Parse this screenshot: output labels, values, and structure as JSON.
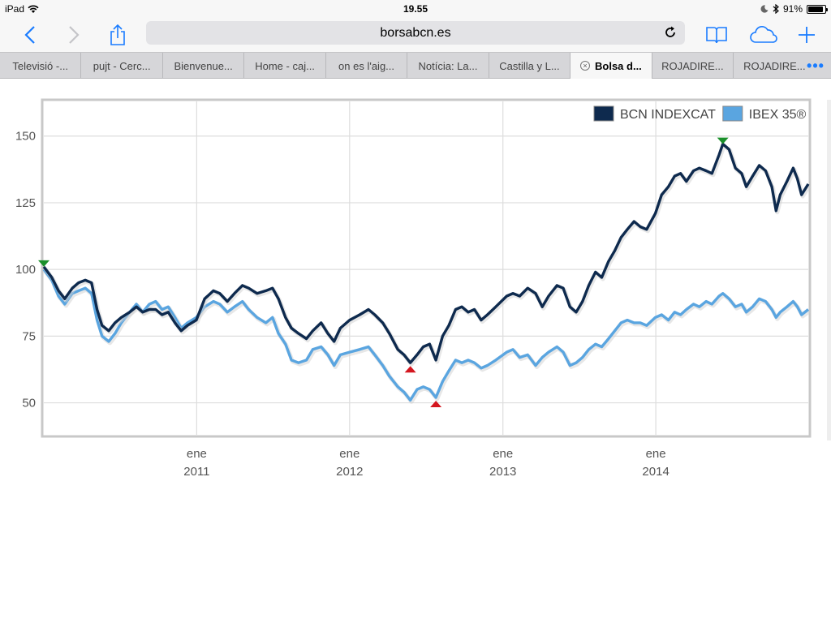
{
  "status_bar": {
    "device": "iPad",
    "time": "19.55",
    "battery": "91%",
    "battery_level": 0.91
  },
  "toolbar": {
    "url": "borsabcn.es"
  },
  "tabs": [
    {
      "label": "Televisió -..."
    },
    {
      "label": "pujt - Cerc..."
    },
    {
      "label": "Bienvenue..."
    },
    {
      "label": "Home - caj..."
    },
    {
      "label": "on es l'aig..."
    },
    {
      "label": "Notícia: La..."
    },
    {
      "label": "Castilla y L..."
    },
    {
      "label": "Bolsa d...",
      "active": true
    },
    {
      "label": "ROJADIRE..."
    },
    {
      "label": "ROJADIRE..."
    }
  ],
  "chart_data": {
    "type": "line",
    "title": "",
    "xlabel": "",
    "ylabel": "",
    "ylim": [
      38,
      163
    ],
    "yticks": [
      50,
      75,
      100,
      125,
      150
    ],
    "xlim": [
      "2010-01-01",
      "2014-12-31"
    ],
    "xticks": [
      {
        "date": "2011-01-01",
        "month": "ene",
        "year": "2011"
      },
      {
        "date": "2012-01-01",
        "month": "ene",
        "year": "2012"
      },
      {
        "date": "2013-01-01",
        "month": "ene",
        "year": "2013"
      },
      {
        "date": "2014-01-01",
        "month": "ene",
        "year": "2014"
      }
    ],
    "grid": true,
    "legend": "top-right",
    "series": [
      {
        "name": "BCN INDEXCAT",
        "color": "#0e2a4e",
        "points": [
          [
            "2010-01-01",
            101
          ],
          [
            "2010-01-20",
            97
          ],
          [
            "2010-02-05",
            92
          ],
          [
            "2010-02-20",
            89
          ],
          [
            "2010-03-10",
            93
          ],
          [
            "2010-03-25",
            95
          ],
          [
            "2010-04-10",
            96
          ],
          [
            "2010-04-25",
            95
          ],
          [
            "2010-05-08",
            85
          ],
          [
            "2010-05-20",
            79
          ],
          [
            "2010-06-05",
            77
          ],
          [
            "2010-06-20",
            80
          ],
          [
            "2010-07-05",
            82
          ],
          [
            "2010-07-25",
            84
          ],
          [
            "2010-08-10",
            86
          ],
          [
            "2010-08-25",
            84
          ],
          [
            "2010-09-10",
            85
          ],
          [
            "2010-09-25",
            85
          ],
          [
            "2010-10-10",
            83
          ],
          [
            "2010-10-25",
            84
          ],
          [
            "2010-11-10",
            80
          ],
          [
            "2010-11-25",
            77
          ],
          [
            "2010-12-10",
            79
          ],
          [
            "2010-12-31",
            81
          ],
          [
            "2011-01-20",
            89
          ],
          [
            "2011-02-10",
            92
          ],
          [
            "2011-02-25",
            91
          ],
          [
            "2011-03-15",
            88
          ],
          [
            "2011-04-01",
            91
          ],
          [
            "2011-04-20",
            94
          ],
          [
            "2011-05-05",
            93
          ],
          [
            "2011-05-25",
            91
          ],
          [
            "2011-06-15",
            92
          ],
          [
            "2011-07-01",
            93
          ],
          [
            "2011-07-15",
            89
          ],
          [
            "2011-08-01",
            82
          ],
          [
            "2011-08-15",
            78
          ],
          [
            "2011-09-01",
            76
          ],
          [
            "2011-09-20",
            74
          ],
          [
            "2011-10-05",
            77
          ],
          [
            "2011-10-25",
            80
          ],
          [
            "2011-11-10",
            76
          ],
          [
            "2011-11-25",
            73
          ],
          [
            "2011-12-10",
            78
          ],
          [
            "2012-01-01",
            81
          ],
          [
            "2012-01-25",
            83
          ],
          [
            "2012-02-15",
            85
          ],
          [
            "2012-03-01",
            83
          ],
          [
            "2012-03-20",
            80
          ],
          [
            "2012-04-05",
            76
          ],
          [
            "2012-04-25",
            70
          ],
          [
            "2012-05-10",
            68
          ],
          [
            "2012-05-25",
            65
          ],
          [
            "2012-06-10",
            68
          ],
          [
            "2012-06-25",
            71
          ],
          [
            "2012-07-10",
            72
          ],
          [
            "2012-07-25",
            66
          ],
          [
            "2012-08-10",
            75
          ],
          [
            "2012-08-25",
            79
          ],
          [
            "2012-09-10",
            85
          ],
          [
            "2012-09-25",
            86
          ],
          [
            "2012-10-10",
            84
          ],
          [
            "2012-10-25",
            85
          ],
          [
            "2012-11-10",
            81
          ],
          [
            "2012-11-25",
            83
          ],
          [
            "2012-12-15",
            86
          ],
          [
            "2013-01-10",
            90
          ],
          [
            "2013-01-25",
            91
          ],
          [
            "2013-02-10",
            90
          ],
          [
            "2013-03-01",
            93
          ],
          [
            "2013-03-20",
            91
          ],
          [
            "2013-04-05",
            86
          ],
          [
            "2013-04-20",
            90
          ],
          [
            "2013-05-10",
            94
          ],
          [
            "2013-05-25",
            93
          ],
          [
            "2013-06-10",
            86
          ],
          [
            "2013-06-25",
            84
          ],
          [
            "2013-07-10",
            88
          ],
          [
            "2013-07-25",
            94
          ],
          [
            "2013-08-10",
            99
          ],
          [
            "2013-08-25",
            97
          ],
          [
            "2013-09-10",
            103
          ],
          [
            "2013-09-25",
            107
          ],
          [
            "2013-10-10",
            112
          ],
          [
            "2013-10-25",
            115
          ],
          [
            "2013-11-10",
            118
          ],
          [
            "2013-11-25",
            116
          ],
          [
            "2013-12-10",
            115
          ],
          [
            "2013-12-31",
            121
          ],
          [
            "2014-01-15",
            128
          ],
          [
            "2014-01-31",
            131
          ],
          [
            "2014-02-15",
            135
          ],
          [
            "2014-03-01",
            136
          ],
          [
            "2014-03-15",
            133
          ],
          [
            "2014-04-01",
            137
          ],
          [
            "2014-04-15",
            138
          ],
          [
            "2014-05-01",
            137
          ],
          [
            "2014-05-15",
            136
          ],
          [
            "2014-06-01",
            143
          ],
          [
            "2014-06-10",
            147
          ],
          [
            "2014-06-25",
            145
          ],
          [
            "2014-07-10",
            138
          ],
          [
            "2014-07-25",
            136
          ],
          [
            "2014-08-05",
            131
          ],
          [
            "2014-08-20",
            135
          ],
          [
            "2014-09-05",
            139
          ],
          [
            "2014-09-20",
            137
          ],
          [
            "2014-10-05",
            131
          ],
          [
            "2014-10-15",
            122
          ],
          [
            "2014-10-25",
            128
          ],
          [
            "2014-11-10",
            133
          ],
          [
            "2014-11-25",
            138
          ],
          [
            "2014-12-05",
            134
          ],
          [
            "2014-12-15",
            128
          ],
          [
            "2014-12-31",
            132
          ]
        ]
      },
      {
        "name": "IBEX 35®",
        "color": "#5aa5e0",
        "points": [
          [
            "2010-01-01",
            100
          ],
          [
            "2010-01-20",
            96
          ],
          [
            "2010-02-05",
            90
          ],
          [
            "2010-02-20",
            87
          ],
          [
            "2010-03-10",
            91
          ],
          [
            "2010-03-25",
            92
          ],
          [
            "2010-04-10",
            93
          ],
          [
            "2010-04-25",
            91
          ],
          [
            "2010-05-08",
            81
          ],
          [
            "2010-05-20",
            75
          ],
          [
            "2010-06-05",
            73
          ],
          [
            "2010-06-20",
            76
          ],
          [
            "2010-07-05",
            80
          ],
          [
            "2010-07-25",
            84
          ],
          [
            "2010-08-10",
            87
          ],
          [
            "2010-08-25",
            84
          ],
          [
            "2010-09-10",
            87
          ],
          [
            "2010-09-25",
            88
          ],
          [
            "2010-10-10",
            85
          ],
          [
            "2010-10-25",
            86
          ],
          [
            "2010-11-10",
            82
          ],
          [
            "2010-11-25",
            78
          ],
          [
            "2010-12-10",
            80
          ],
          [
            "2010-12-31",
            82
          ],
          [
            "2011-01-20",
            86
          ],
          [
            "2011-02-10",
            88
          ],
          [
            "2011-02-25",
            87
          ],
          [
            "2011-03-15",
            84
          ],
          [
            "2011-04-01",
            86
          ],
          [
            "2011-04-20",
            88
          ],
          [
            "2011-05-05",
            85
          ],
          [
            "2011-05-25",
            82
          ],
          [
            "2011-06-15",
            80
          ],
          [
            "2011-07-01",
            82
          ],
          [
            "2011-07-15",
            76
          ],
          [
            "2011-08-01",
            72
          ],
          [
            "2011-08-15",
            66
          ],
          [
            "2011-09-01",
            65
          ],
          [
            "2011-09-20",
            66
          ],
          [
            "2011-10-05",
            70
          ],
          [
            "2011-10-25",
            71
          ],
          [
            "2011-11-10",
            68
          ],
          [
            "2011-11-25",
            64
          ],
          [
            "2011-12-10",
            68
          ],
          [
            "2012-01-01",
            69
          ],
          [
            "2012-01-25",
            70
          ],
          [
            "2012-02-15",
            71
          ],
          [
            "2012-03-01",
            68
          ],
          [
            "2012-03-20",
            64
          ],
          [
            "2012-04-05",
            60
          ],
          [
            "2012-04-25",
            56
          ],
          [
            "2012-05-10",
            54
          ],
          [
            "2012-05-25",
            51
          ],
          [
            "2012-06-10",
            55
          ],
          [
            "2012-06-25",
            56
          ],
          [
            "2012-07-10",
            55
          ],
          [
            "2012-07-25",
            52
          ],
          [
            "2012-08-10",
            58
          ],
          [
            "2012-08-25",
            62
          ],
          [
            "2012-09-10",
            66
          ],
          [
            "2012-09-25",
            65
          ],
          [
            "2012-10-10",
            66
          ],
          [
            "2012-10-25",
            65
          ],
          [
            "2012-11-10",
            63
          ],
          [
            "2012-11-25",
            64
          ],
          [
            "2012-12-15",
            66
          ],
          [
            "2013-01-10",
            69
          ],
          [
            "2013-01-25",
            70
          ],
          [
            "2013-02-10",
            67
          ],
          [
            "2013-03-01",
            68
          ],
          [
            "2013-03-20",
            64
          ],
          [
            "2013-04-05",
            67
          ],
          [
            "2013-04-20",
            69
          ],
          [
            "2013-05-10",
            71
          ],
          [
            "2013-05-25",
            69
          ],
          [
            "2013-06-10",
            64
          ],
          [
            "2013-06-25",
            65
          ],
          [
            "2013-07-10",
            67
          ],
          [
            "2013-07-25",
            70
          ],
          [
            "2013-08-10",
            72
          ],
          [
            "2013-08-25",
            71
          ],
          [
            "2013-09-10",
            74
          ],
          [
            "2013-09-25",
            77
          ],
          [
            "2013-10-10",
            80
          ],
          [
            "2013-10-25",
            81
          ],
          [
            "2013-11-10",
            80
          ],
          [
            "2013-11-25",
            80
          ],
          [
            "2013-12-10",
            79
          ],
          [
            "2013-12-31",
            82
          ],
          [
            "2014-01-15",
            83
          ],
          [
            "2014-01-31",
            81
          ],
          [
            "2014-02-15",
            84
          ],
          [
            "2014-03-01",
            83
          ],
          [
            "2014-03-15",
            85
          ],
          [
            "2014-04-01",
            87
          ],
          [
            "2014-04-15",
            86
          ],
          [
            "2014-05-01",
            88
          ],
          [
            "2014-05-15",
            87
          ],
          [
            "2014-06-01",
            90
          ],
          [
            "2014-06-10",
            91
          ],
          [
            "2014-06-25",
            89
          ],
          [
            "2014-07-10",
            86
          ],
          [
            "2014-07-25",
            87
          ],
          [
            "2014-08-05",
            84
          ],
          [
            "2014-08-20",
            86
          ],
          [
            "2014-09-05",
            89
          ],
          [
            "2014-09-20",
            88
          ],
          [
            "2014-10-05",
            85
          ],
          [
            "2014-10-15",
            82
          ],
          [
            "2014-10-25",
            84
          ],
          [
            "2014-11-10",
            86
          ],
          [
            "2014-11-25",
            88
          ],
          [
            "2014-12-05",
            86
          ],
          [
            "2014-12-15",
            83
          ],
          [
            "2014-12-31",
            85
          ]
        ]
      }
    ],
    "markers": [
      {
        "type": "max",
        "date": "2010-01-01",
        "value": 101,
        "color": "#1a8f2a"
      },
      {
        "type": "max",
        "date": "2014-06-10",
        "value": 147,
        "color": "#1a8f2a"
      },
      {
        "type": "min",
        "date": "2012-05-25",
        "value": 65,
        "color": "#d4161f"
      },
      {
        "type": "min",
        "date": "2012-07-25",
        "value": 52,
        "color": "#d4161f"
      }
    ]
  }
}
